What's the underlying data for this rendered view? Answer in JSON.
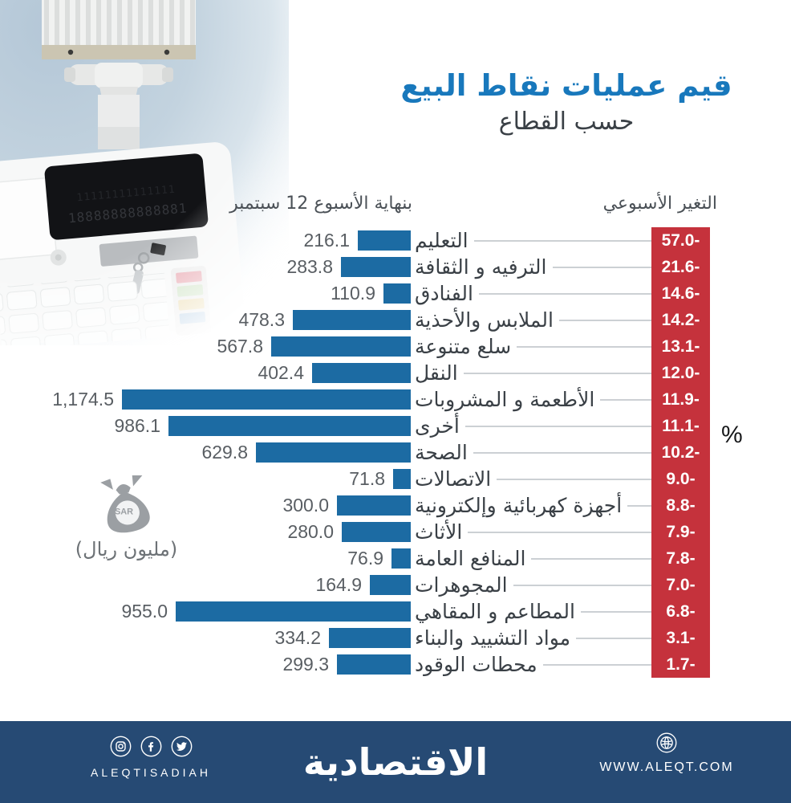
{
  "title": "قيم عمليات نقاط البيع",
  "subtitle": "حسب القطاع",
  "headers": {
    "value_header": "بنهاية الأسبوع  12 سبتمبر",
    "change_header": "التغير الأسبوعي",
    "percent_symbol": "%",
    "unit_label": "(مليون ريال)",
    "unit_badge": "SAR"
  },
  "photo": {
    "description": "cash-register",
    "display_digits": "18888888888881"
  },
  "chart_data": {
    "type": "bar",
    "orientation": "horizontal",
    "title": "قيم عمليات نقاط البيع حسب القطاع",
    "xlabel": "مليون ريال",
    "xlim": [
      0,
      1174.5
    ],
    "grid": false,
    "categories": [
      "التعليم",
      "الترفيه و الثقافة",
      "الفنادق",
      "الملابس والأحذية",
      "سلع متنوعة",
      "النقل",
      "الأطعمة و المشروبات",
      "أخرى",
      "الصحة",
      "الاتصالات",
      "أجهزة كهربائية وإلكترونية",
      "الأثاث",
      "المنافع العامة",
      "المجوهرات",
      "المطاعم و المقاهي",
      "مواد التشييد والبناء",
      "محطات الوقود"
    ],
    "series": [
      {
        "name": "بنهاية الأسبوع 12 سبتمبر (مليون ريال)",
        "values": [
          216.1,
          283.8,
          110.9,
          478.3,
          567.8,
          402.4,
          1174.5,
          986.1,
          629.8,
          71.8,
          300.0,
          280.0,
          76.9,
          164.9,
          955.0,
          334.2,
          299.3
        ]
      },
      {
        "name": "التغير الأسبوعي %",
        "values": [
          -57.0,
          -21.6,
          -14.6,
          -14.2,
          -13.1,
          -12.0,
          -11.9,
          -11.1,
          -10.2,
          -9.0,
          -8.8,
          -7.9,
          -7.8,
          -7.0,
          -6.8,
          -3.1,
          -1.7
        ]
      }
    ],
    "value_labels": [
      "216.1",
      "283.8",
      "110.9",
      "478.3",
      "567.8",
      "402.4",
      "1,174.5",
      "986.1",
      "629.8",
      "71.8",
      "300.0",
      "280.0",
      "76.9",
      "164.9",
      "955.0",
      "334.2",
      "299.3"
    ],
    "change_labels": [
      "57.0-",
      "21.6-",
      "14.6-",
      "14.2-",
      "13.1-",
      "12.0-",
      "11.9-",
      "11.1-",
      "10.2-",
      "9.0-",
      "8.8-",
      "7.9-",
      "7.8-",
      "7.0-",
      "6.8-",
      "3.1-",
      "1.7-"
    ]
  },
  "colors": {
    "bar": "#1c6ba3",
    "negative": "#c5323c",
    "title": "#1878bc",
    "footer_bg": "#264a74",
    "text_dark": "#3a4046",
    "value_text": "#595e63",
    "leader_line": "#ccd0d4"
  },
  "footer": {
    "logo": "الاقتصادية",
    "social_handle": "ALEQTISADIAH",
    "website": "WWW.ALEQT.COM"
  }
}
